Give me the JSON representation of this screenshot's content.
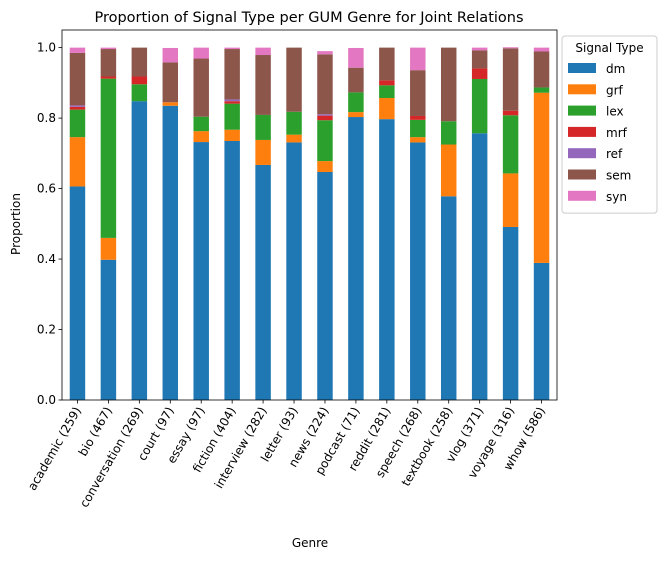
{
  "chart_data": {
    "type": "bar",
    "stacked": true,
    "title": "Proportion of Signal Type per GUM Genre for Joint Relations",
    "xlabel": "Genre",
    "ylabel": "Proportion",
    "ylim": [
      0,
      1.05
    ],
    "yticks": [
      "0.0",
      "0.2",
      "0.4",
      "0.6",
      "0.8",
      "1.0"
    ],
    "legend": {
      "title": "Signal Type",
      "placement": "outside-right"
    },
    "grid": false,
    "categories": [
      "academic (259)",
      "bio (467)",
      "conversation (269)",
      "court (97)",
      "essay (97)",
      "fiction (404)",
      "interview (282)",
      "letter (93)",
      "news (224)",
      "podcast (71)",
      "reddit (281)",
      "speech (268)",
      "textbook (258)",
      "vlog (371)",
      "voyage (316)",
      "whow (586)"
    ],
    "series": [
      {
        "name": "dm",
        "color": "#1f77b4",
        "values": [
          0.606,
          0.398,
          0.848,
          0.835,
          0.732,
          0.735,
          0.667,
          0.731,
          0.647,
          0.803,
          0.797,
          0.731,
          0.578,
          0.757,
          0.491,
          0.389
        ]
      },
      {
        "name": "grf",
        "color": "#ff7f0e",
        "values": [
          0.14,
          0.062,
          0.0,
          0.01,
          0.031,
          0.032,
          0.071,
          0.022,
          0.031,
          0.014,
          0.06,
          0.015,
          0.147,
          0.0,
          0.152,
          0.483
        ]
      },
      {
        "name": "lex",
        "color": "#2ca02c",
        "values": [
          0.078,
          0.452,
          0.048,
          0.0,
          0.041,
          0.074,
          0.071,
          0.065,
          0.116,
          0.056,
          0.036,
          0.049,
          0.066,
          0.154,
          0.165,
          0.015
        ]
      },
      {
        "name": "mrf",
        "color": "#d62728",
        "values": [
          0.008,
          0.006,
          0.022,
          0.0,
          0.0,
          0.007,
          0.0,
          0.0,
          0.013,
          0.0,
          0.014,
          0.011,
          0.0,
          0.03,
          0.013,
          0.0
        ]
      },
      {
        "name": "ref",
        "color": "#9467bd",
        "values": [
          0.004,
          0.0,
          0.0,
          0.0,
          0.0,
          0.005,
          0.0,
          0.0,
          0.004,
          0.0,
          0.0,
          0.0,
          0.0,
          0.0,
          0.0,
          0.0
        ]
      },
      {
        "name": "sem",
        "color": "#8c564b",
        "values": [
          0.149,
          0.078,
          0.082,
          0.113,
          0.165,
          0.143,
          0.17,
          0.182,
          0.17,
          0.07,
          0.093,
          0.13,
          0.209,
          0.051,
          0.177,
          0.102
        ]
      },
      {
        "name": "syn",
        "color": "#e377c2",
        "values": [
          0.015,
          0.004,
          0.0,
          0.041,
          0.031,
          0.004,
          0.021,
          0.0,
          0.009,
          0.056,
          0.0,
          0.064,
          0.0,
          0.008,
          0.003,
          0.011
        ]
      }
    ]
  }
}
